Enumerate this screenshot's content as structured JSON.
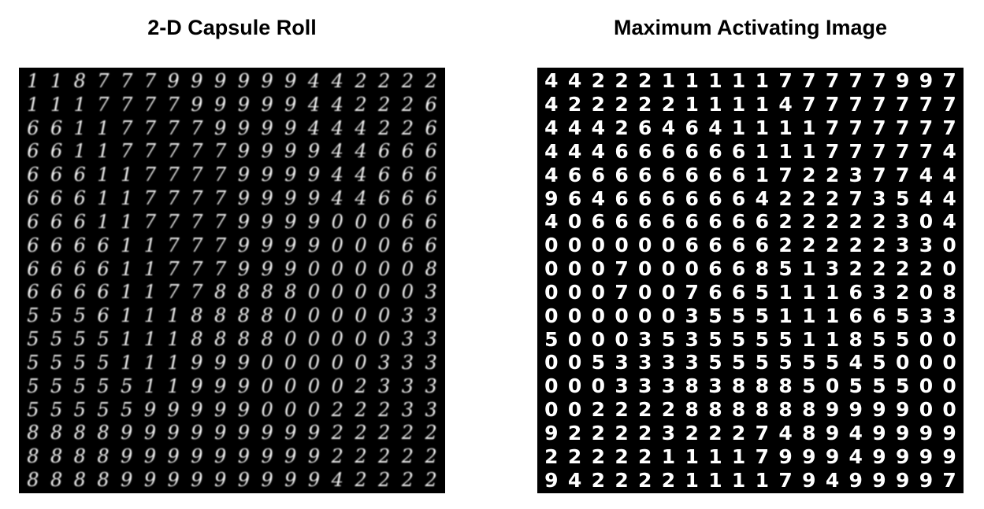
{
  "panels": [
    {
      "title": "2-D Capsule Roll",
      "rows": [
        "118777999999442222",
        "111777799999442226",
        "661177779999444226",
        "661177777999944666",
        "666117777999944666",
        "666117777999944666",
        "666117777999900066",
        "666611777999900066",
        "666611777999000008",
        "666611778888000003",
        "555611188880000033",
        "555511188880000033",
        "555511199900000333",
        "555551199900002333",
        "555559999900022233",
        "888899999999922222",
        "888899999999922222",
        "888899999999942222"
      ]
    },
    {
      "title": "Maximum Activating Image",
      "rows": [
        "442221111177777997",
        "422222111147777777",
        "444264641111777777",
        "444666666111777774",
        "466666666172237744",
        "964666666422273544",
        "406666666622222304",
        "000000666622222330",
        "000700066851322220",
        "000700766511163208",
        "000000355511166533",
        "500035355551185500",
        "005333355555545000",
        "000333838885055500",
        "002222888888999900",
        "922223222748949999",
        "222221111799949999",
        "942222111179499997"
      ]
    }
  ]
}
